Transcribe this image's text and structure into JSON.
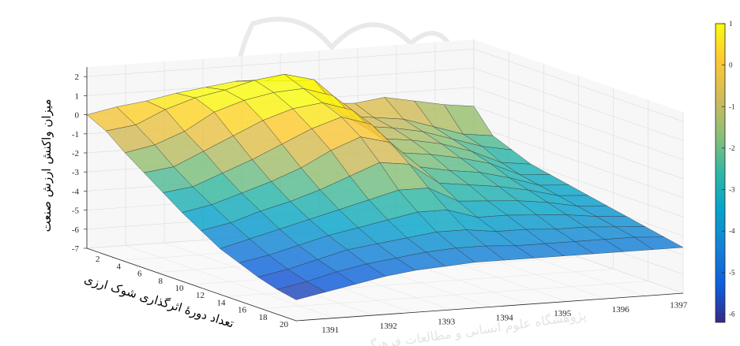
{
  "chart_data": {
    "type": "surface",
    "title": "",
    "xlabel": "",
    "ylabel": "تعداد دورهٔ اثرگذاری شوک ارزی",
    "zlabel": "میزان واکنش ارزش صنعت",
    "x_ticks": [
      "1391",
      "1392",
      "1393",
      "1394",
      "1395",
      "1396",
      "1397"
    ],
    "y_ticks": [
      "2",
      "4",
      "6",
      "8",
      "10",
      "12",
      "14",
      "16",
      "18",
      "20"
    ],
    "z_ticks": [
      "2",
      "1",
      "0",
      "-1",
      "-2",
      "-3",
      "-4",
      "-5",
      "-6",
      "-7"
    ],
    "zlim": [
      -7,
      2
    ],
    "colorbar": {
      "ticks": [
        "1",
        "0",
        "-1",
        "-2",
        "-3",
        "-4",
        "-5",
        "-6"
      ],
      "range": [
        -6.2,
        1
      ],
      "colormap": "parula"
    },
    "grid": true,
    "legend": "none",
    "surface_series": [
      {
        "y": 1,
        "z": [
          0.0,
          0.3,
          0.5,
          0.8,
          1.0,
          1.2,
          1.1,
          1.0,
          -0.3,
          -0.4,
          -0.2,
          -0.5,
          -0.8,
          -1.0
        ]
      },
      {
        "y": 2,
        "z": [
          -0.5,
          -0.3,
          0.4,
          0.9,
          1.2,
          1.6,
          1.8,
          1.4,
          -0.6,
          -0.8,
          -1.0,
          -1.5,
          -2.0,
          -2.2
        ]
      },
      {
        "y": 3,
        "z": [
          -1.3,
          -1.0,
          -0.4,
          0.5,
          1.0,
          1.3,
          1.4,
          0.9,
          -0.8,
          -1.0,
          -1.3,
          -1.8,
          -2.3,
          -2.6
        ]
      },
      {
        "y": 4,
        "z": [
          -2.0,
          -1.8,
          -1.1,
          -0.4,
          0.3,
          0.8,
          1.0,
          0.5,
          -1.1,
          -1.3,
          -1.6,
          -2.1,
          -2.8,
          -3.0
        ]
      },
      {
        "y": 5,
        "z": [
          -2.7,
          -2.5,
          -1.9,
          -1.3,
          -0.6,
          0.1,
          0.6,
          0.1,
          -1.5,
          -1.7,
          -2.0,
          -2.4,
          -3.1,
          -3.2
        ]
      },
      {
        "y": 6,
        "z": [
          -3.4,
          -3.1,
          -2.6,
          -2.1,
          -1.5,
          -0.7,
          -0.1,
          -0.5,
          -1.9,
          -2.2,
          -2.4,
          -2.8,
          -3.3,
          -3.4
        ]
      },
      {
        "y": 7,
        "z": [
          -4.0,
          -3.7,
          -3.2,
          -2.8,
          -2.3,
          -1.7,
          -1.1,
          -1.3,
          -2.4,
          -2.6,
          -2.8,
          -3.1,
          -3.5,
          -3.6
        ]
      },
      {
        "y": 8,
        "z": [
          -4.6,
          -4.2,
          -3.8,
          -3.4,
          -3.0,
          -2.6,
          -2.2,
          -2.2,
          -3.0,
          -3.1,
          -3.2,
          -3.4,
          -3.7,
          -3.8
        ]
      },
      {
        "y": 9,
        "z": [
          -5.0,
          -4.7,
          -4.3,
          -3.9,
          -3.6,
          -3.3,
          -3.0,
          -3.0,
          -3.5,
          -3.5,
          -3.6,
          -3.7,
          -3.9,
          -4.0
        ]
      },
      {
        "y": 10,
        "z": [
          -5.4,
          -5.1,
          -4.7,
          -4.3,
          -4.1,
          -3.9,
          -3.7,
          -3.7,
          -3.9,
          -3.9,
          -4.0,
          -4.0,
          -4.1,
          -4.2
        ]
      },
      {
        "y": 11,
        "z": [
          -5.7,
          -5.4,
          -5.0,
          -4.7,
          -4.5,
          -4.3,
          -4.2,
          -4.2,
          -4.3,
          -4.3,
          -4.3,
          -4.3,
          -4.3,
          -4.4
        ]
      },
      {
        "y": 12,
        "z": [
          -5.9,
          -5.6,
          -5.3,
          -5.0,
          -4.8,
          -4.7,
          -4.6,
          -4.6,
          -4.6,
          -4.6,
          -4.6,
          -4.6,
          -4.6,
          -4.6
        ]
      }
    ]
  },
  "watermark": {
    "caption": "پژوهشگاه علوم انسانی و مطالعات فرهنگی"
  }
}
